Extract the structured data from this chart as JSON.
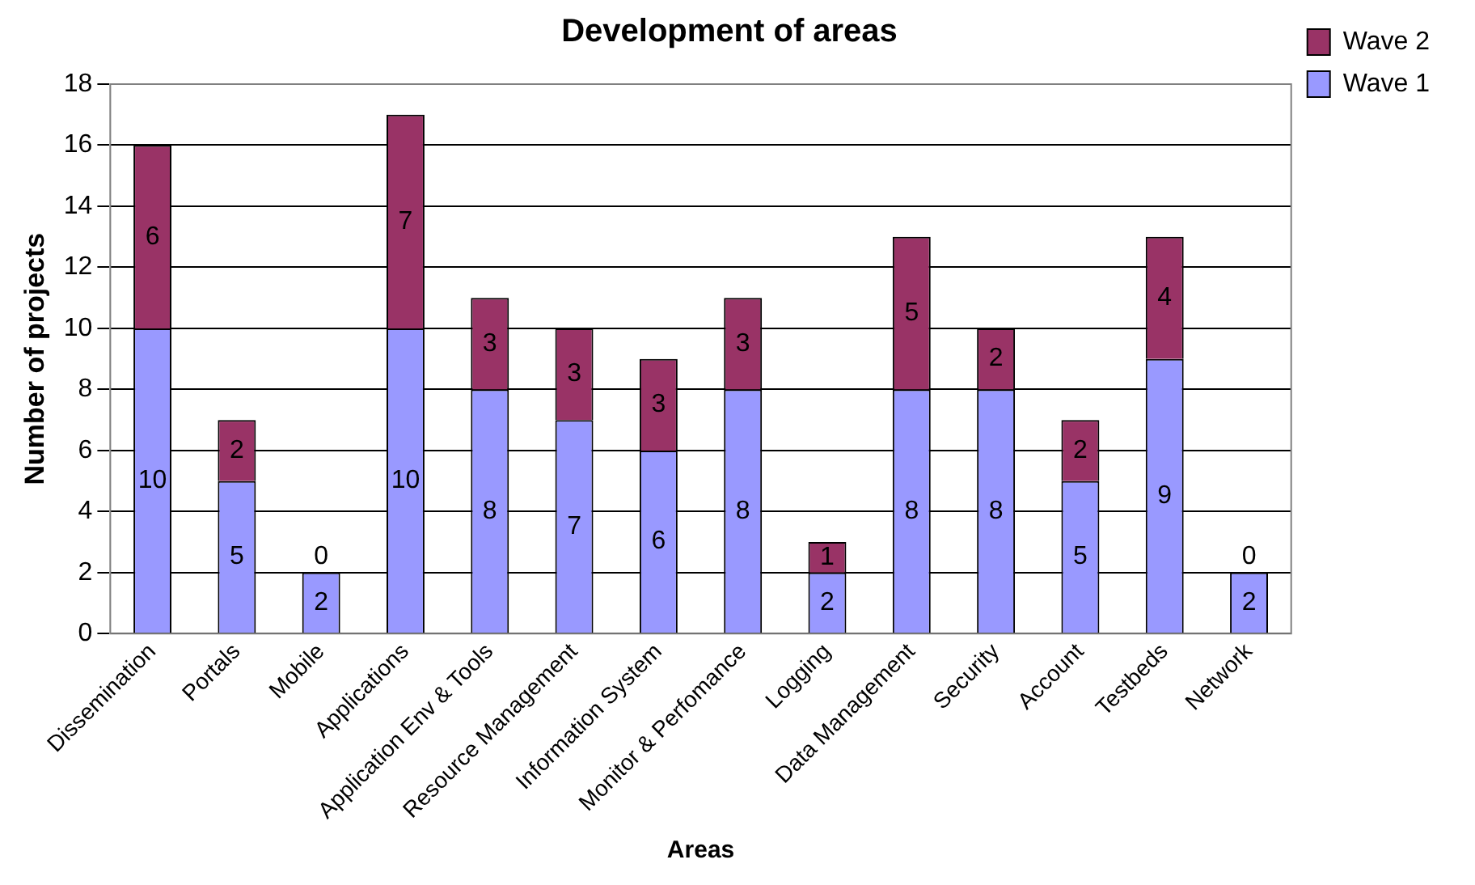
{
  "chart_data": {
    "type": "bar",
    "title": "Development of areas",
    "xlabel": "Areas",
    "ylabel": "Number of projects",
    "categories": [
      "Dissemination",
      "Portals",
      "Mobile",
      "Applications",
      "Application Env & Tools",
      "Resource Management",
      "Information System",
      "Monitor & Perfomance",
      "Logging",
      "Data Management",
      "Security",
      "Account",
      "Testbeds",
      "Network"
    ],
    "series": [
      {
        "name": "Wave 1",
        "color": "#9999ff",
        "values": [
          10,
          5,
          2,
          10,
          8,
          7,
          6,
          8,
          2,
          8,
          8,
          5,
          9,
          2
        ]
      },
      {
        "name": "Wave 2",
        "color": "#993366",
        "values": [
          6,
          2,
          0,
          7,
          3,
          3,
          3,
          3,
          1,
          5,
          2,
          2,
          4,
          0
        ]
      }
    ],
    "stacked": true,
    "ylim": [
      0,
      18
    ],
    "yticks": [
      0,
      2,
      4,
      6,
      8,
      10,
      12,
      14,
      16,
      18
    ],
    "grid": "y",
    "legend": "top right",
    "data_labels": true
  }
}
